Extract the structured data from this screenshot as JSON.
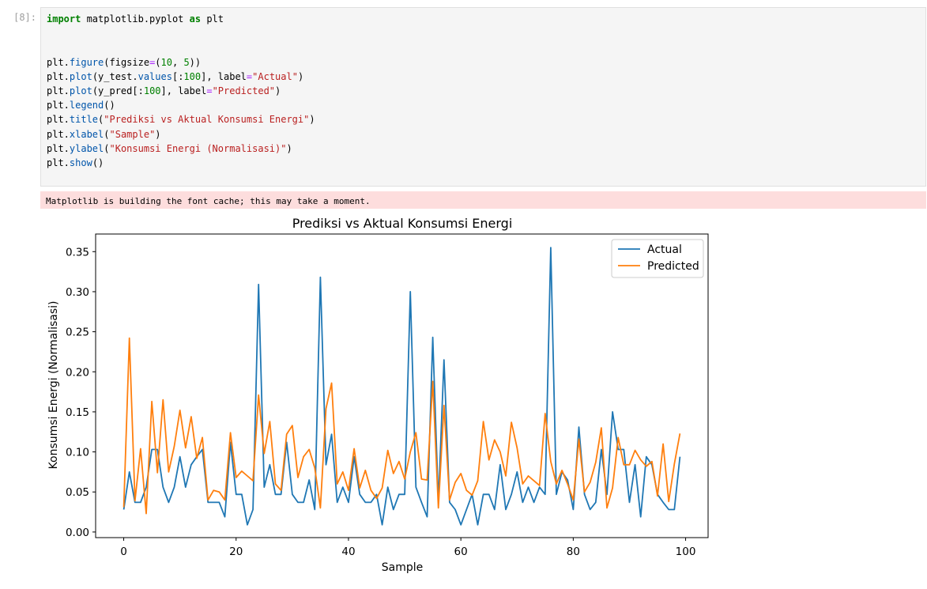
{
  "cell": {
    "prompt": "[8]:",
    "code_lines": [
      [
        {
          "t": "kw",
          "v": "import"
        },
        {
          "t": "",
          "v": " matplotlib.pyplot "
        },
        {
          "t": "kw",
          "v": "as"
        },
        {
          "t": "",
          "v": " plt"
        }
      ],
      [],
      [],
      [
        {
          "t": "",
          "v": "plt."
        },
        {
          "t": "fn",
          "v": "figure"
        },
        {
          "t": "",
          "v": "(figsize"
        },
        {
          "t": "op",
          "v": "="
        },
        {
          "t": "",
          "v": "("
        },
        {
          "t": "num",
          "v": "10"
        },
        {
          "t": "",
          "v": ", "
        },
        {
          "t": "num",
          "v": "5"
        },
        {
          "t": "",
          "v": "))"
        }
      ],
      [
        {
          "t": "",
          "v": "plt."
        },
        {
          "t": "fn",
          "v": "plot"
        },
        {
          "t": "",
          "v": "(y_test."
        },
        {
          "t": "fn",
          "v": "values"
        },
        {
          "t": "",
          "v": "[:"
        },
        {
          "t": "num",
          "v": "100"
        },
        {
          "t": "",
          "v": "], label"
        },
        {
          "t": "op",
          "v": "="
        },
        {
          "t": "str",
          "v": "\"Actual\""
        },
        {
          "t": "",
          "v": ")"
        }
      ],
      [
        {
          "t": "",
          "v": "plt."
        },
        {
          "t": "fn",
          "v": "plot"
        },
        {
          "t": "",
          "v": "(y_pred[:"
        },
        {
          "t": "num",
          "v": "100"
        },
        {
          "t": "",
          "v": "], label"
        },
        {
          "t": "op",
          "v": "="
        },
        {
          "t": "str",
          "v": "\"Predicted\""
        },
        {
          "t": "",
          "v": ")"
        }
      ],
      [
        {
          "t": "",
          "v": "plt."
        },
        {
          "t": "fn",
          "v": "legend"
        },
        {
          "t": "",
          "v": "()"
        }
      ],
      [
        {
          "t": "",
          "v": "plt."
        },
        {
          "t": "fn",
          "v": "title"
        },
        {
          "t": "",
          "v": "("
        },
        {
          "t": "str",
          "v": "\"Prediksi vs Aktual Konsumsi Energi\""
        },
        {
          "t": "",
          "v": ")"
        }
      ],
      [
        {
          "t": "",
          "v": "plt."
        },
        {
          "t": "fn",
          "v": "xlabel"
        },
        {
          "t": "",
          "v": "("
        },
        {
          "t": "str",
          "v": "\"Sample\""
        },
        {
          "t": "",
          "v": ")"
        }
      ],
      [
        {
          "t": "",
          "v": "plt."
        },
        {
          "t": "fn",
          "v": "ylabel"
        },
        {
          "t": "",
          "v": "("
        },
        {
          "t": "str",
          "v": "\"Konsumsi Energi (Normalisasi)\""
        },
        {
          "t": "",
          "v": ")"
        }
      ],
      [
        {
          "t": "",
          "v": "plt."
        },
        {
          "t": "fn",
          "v": "show"
        },
        {
          "t": "",
          "v": "()"
        }
      ]
    ],
    "stderr": "Matplotlib is building the font cache; this may take a moment."
  },
  "colors": {
    "actual": "#1f77b4",
    "predicted": "#ff7f0e"
  },
  "chart_data": {
    "type": "line",
    "title": "Prediksi vs Aktual Konsumsi Energi",
    "xlabel": "Sample",
    "ylabel": "Konsumsi Energi (Normalisasi)",
    "xlim": [
      -5,
      104
    ],
    "ylim": [
      -0.007,
      0.372
    ],
    "xticks": [
      0,
      20,
      40,
      60,
      80,
      100
    ],
    "yticks": [
      0.0,
      0.05,
      0.1,
      0.15,
      0.2,
      0.25,
      0.3,
      0.35
    ],
    "legend": "top-right",
    "series": [
      {
        "name": "Actual",
        "values": [
          0.028,
          0.075,
          0.037,
          0.037,
          0.056,
          0.103,
          0.103,
          0.056,
          0.037,
          0.056,
          0.094,
          0.056,
          0.084,
          0.094,
          0.103,
          0.037,
          0.037,
          0.037,
          0.019,
          0.112,
          0.047,
          0.047,
          0.009,
          0.028,
          0.309,
          0.056,
          0.084,
          0.047,
          0.047,
          0.112,
          0.047,
          0.037,
          0.037,
          0.065,
          0.028,
          0.318,
          0.084,
          0.122,
          0.037,
          0.056,
          0.037,
          0.094,
          0.047,
          0.037,
          0.037,
          0.047,
          0.009,
          0.056,
          0.028,
          0.047,
          0.047,
          0.3,
          0.056,
          0.037,
          0.019,
          0.243,
          0.037,
          0.215,
          0.037,
          0.028,
          0.009,
          0.028,
          0.047,
          0.009,
          0.047,
          0.047,
          0.028,
          0.084,
          0.028,
          0.047,
          0.075,
          0.037,
          0.056,
          0.037,
          0.056,
          0.047,
          0.355,
          0.047,
          0.075,
          0.065,
          0.028,
          0.131,
          0.047,
          0.028,
          0.037,
          0.103,
          0.047,
          0.15,
          0.103,
          0.103,
          0.037,
          0.084,
          0.019,
          0.094,
          0.084,
          0.047,
          0.037,
          0.028,
          0.028,
          0.094
        ]
      },
      {
        "name": "Predicted",
        "values": [
          0.031,
          0.242,
          0.039,
          0.104,
          0.023,
          0.163,
          0.074,
          0.165,
          0.075,
          0.107,
          0.152,
          0.105,
          0.144,
          0.092,
          0.118,
          0.04,
          0.052,
          0.05,
          0.04,
          0.124,
          0.068,
          0.076,
          0.07,
          0.064,
          0.171,
          0.098,
          0.138,
          0.06,
          0.052,
          0.122,
          0.133,
          0.068,
          0.094,
          0.103,
          0.08,
          0.03,
          0.154,
          0.186,
          0.06,
          0.075,
          0.052,
          0.104,
          0.055,
          0.077,
          0.052,
          0.042,
          0.055,
          0.102,
          0.073,
          0.088,
          0.066,
          0.1,
          0.124,
          0.066,
          0.065,
          0.188,
          0.03,
          0.158,
          0.04,
          0.062,
          0.073,
          0.052,
          0.046,
          0.064,
          0.138,
          0.09,
          0.115,
          0.1,
          0.07,
          0.137,
          0.105,
          0.06,
          0.07,
          0.064,
          0.058,
          0.148,
          0.088,
          0.06,
          0.077,
          0.06,
          0.04,
          0.116,
          0.05,
          0.062,
          0.087,
          0.13,
          0.03,
          0.055,
          0.118,
          0.084,
          0.084,
          0.102,
          0.09,
          0.082,
          0.088,
          0.045,
          0.11,
          0.038,
          0.085,
          0.123
        ]
      }
    ]
  }
}
